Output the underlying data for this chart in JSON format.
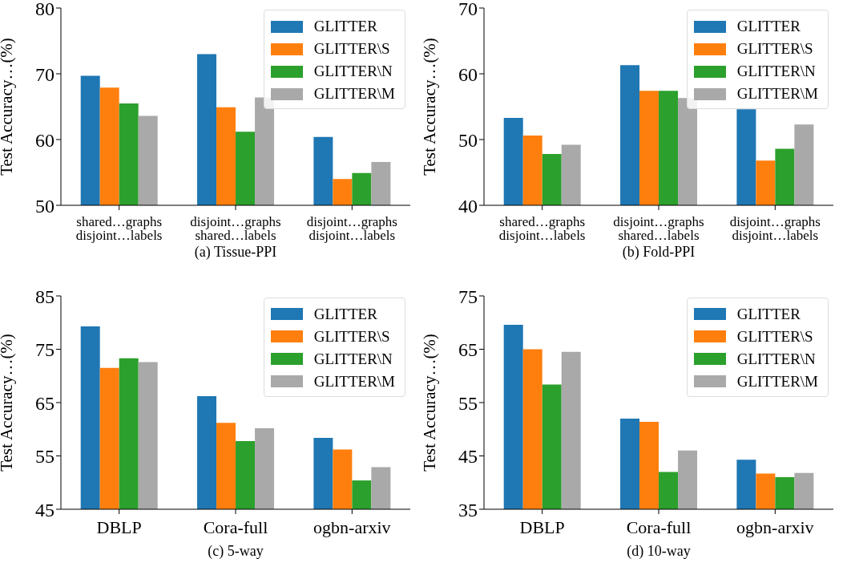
{
  "chart_data": [
    {
      "type": "bar",
      "title": "(a) Tissue-PPI",
      "ylabel": "Test Accuracy…(%)",
      "categories": [
        "shared…graphs\ndisjoint…labels",
        "disjoint…graphs\nshared…labels",
        "disjoint…graphs\ndisjoint…labels"
      ],
      "ylim": [
        50,
        80
      ],
      "yticks": [
        50,
        60,
        70,
        80
      ],
      "legend": "top right",
      "grid": false,
      "series": [
        {
          "name": "GLITTER",
          "color": "#1f77b4",
          "values": [
            69.7,
            73.0,
            60.4
          ]
        },
        {
          "name": "GLITTER\\S",
          "color": "#ff7f0e",
          "values": [
            67.9,
            64.9,
            54.0
          ]
        },
        {
          "name": "GLITTER\\N",
          "color": "#2ca02c",
          "values": [
            65.5,
            61.2,
            54.9
          ]
        },
        {
          "name": "GLITTER\\M",
          "color": "#a9a9a9",
          "values": [
            63.6,
            66.4,
            56.6
          ]
        }
      ]
    },
    {
      "type": "bar",
      "title": "(b) Fold-PPI",
      "ylabel": "Test Accuracy…(%)",
      "categories": [
        "shared…graphs\ndisjoint…labels",
        "disjoint…graphs\nshared…labels",
        "disjoint…graphs\ndisjoint…labels"
      ],
      "ylim": [
        40,
        70
      ],
      "yticks": [
        40,
        50,
        60,
        70
      ],
      "legend": "top right",
      "grid": false,
      "series": [
        {
          "name": "GLITTER",
          "color": "#1f77b4",
          "values": [
            53.3,
            61.3,
            54.6
          ]
        },
        {
          "name": "GLITTER\\S",
          "color": "#ff7f0e",
          "values": [
            50.6,
            57.4,
            46.8
          ]
        },
        {
          "name": "GLITTER\\N",
          "color": "#2ca02c",
          "values": [
            47.8,
            57.4,
            48.6
          ]
        },
        {
          "name": "GLITTER\\M",
          "color": "#a9a9a9",
          "values": [
            49.2,
            56.3,
            52.3
          ]
        }
      ]
    },
    {
      "type": "bar",
      "title": "(c) 5-way",
      "ylabel": "Test Accuracy…(%)",
      "categories": [
        "DBLP",
        "Cora-full",
        "ogbn-arxiv"
      ],
      "ylim": [
        45,
        85
      ],
      "yticks": [
        45,
        55,
        65,
        75,
        85
      ],
      "legend": "top right",
      "grid": false,
      "series": [
        {
          "name": "GLITTER",
          "color": "#1f77b4",
          "values": [
            79.3,
            66.2,
            58.4
          ]
        },
        {
          "name": "GLITTER\\S",
          "color": "#ff7f0e",
          "values": [
            71.5,
            61.2,
            56.2
          ]
        },
        {
          "name": "GLITTER\\N",
          "color": "#2ca02c",
          "values": [
            73.3,
            57.8,
            50.4
          ]
        },
        {
          "name": "GLITTER\\M",
          "color": "#a9a9a9",
          "values": [
            72.6,
            60.2,
            52.9
          ]
        }
      ]
    },
    {
      "type": "bar",
      "title": "(d) 10-way",
      "ylabel": "Test Accuracy…(%)",
      "categories": [
        "DBLP",
        "Cora-full",
        "ogbn-arxiv"
      ],
      "ylim": [
        35,
        75
      ],
      "yticks": [
        35,
        45,
        55,
        65,
        75
      ],
      "legend": "top right",
      "grid": false,
      "series": [
        {
          "name": "GLITTER",
          "color": "#1f77b4",
          "values": [
            69.6,
            52.0,
            44.3
          ]
        },
        {
          "name": "GLITTER\\S",
          "color": "#ff7f0e",
          "values": [
            65.0,
            51.4,
            41.7
          ]
        },
        {
          "name": "GLITTER\\N",
          "color": "#2ca02c",
          "values": [
            58.4,
            42.0,
            41.0
          ]
        },
        {
          "name": "GLITTER\\M",
          "color": "#a9a9a9",
          "values": [
            64.5,
            46.0,
            41.8
          ]
        }
      ]
    }
  ]
}
